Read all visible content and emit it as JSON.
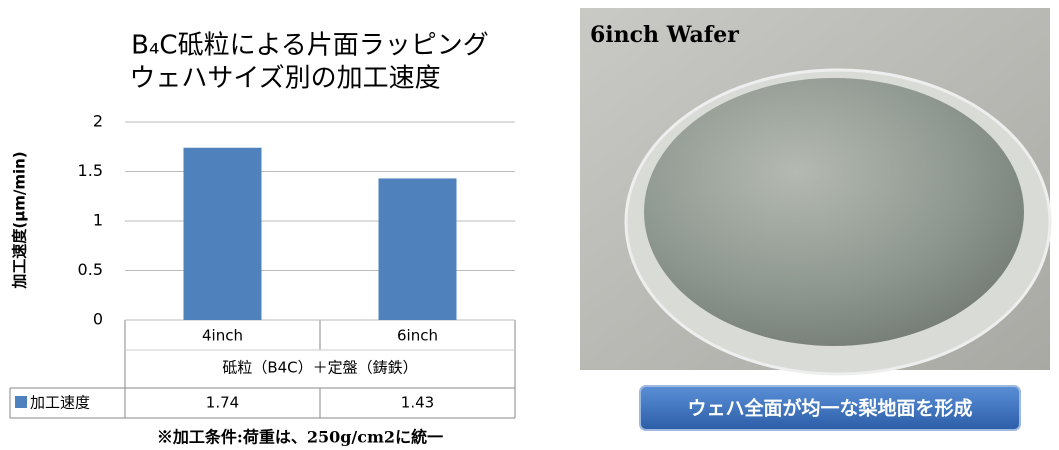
{
  "chart_data": {
    "type": "bar",
    "title": [
      "B₄C砥粒による片面ラッピング",
      "ウェハサイズ別の加工速度"
    ],
    "y_label": "加工速度(μm/min)",
    "categories": [
      "4inch",
      "6inch"
    ],
    "group_label": "砥粒（B4C）＋定盤（鋳鉄）",
    "series": [
      {
        "name": "加工速度",
        "color": "#4f81bd",
        "values": [
          1.74,
          1.43
        ]
      }
    ],
    "ylim": [
      0,
      2
    ],
    "yticks": [
      0,
      0.5,
      1,
      1.5,
      2
    ],
    "grid": true,
    "note": "※加工条件:荷重は、250g/cm2に統一"
  },
  "photo": {
    "label": "6inch Wafer",
    "caption": "ウェハ全面が均一な梨地面を形成"
  }
}
